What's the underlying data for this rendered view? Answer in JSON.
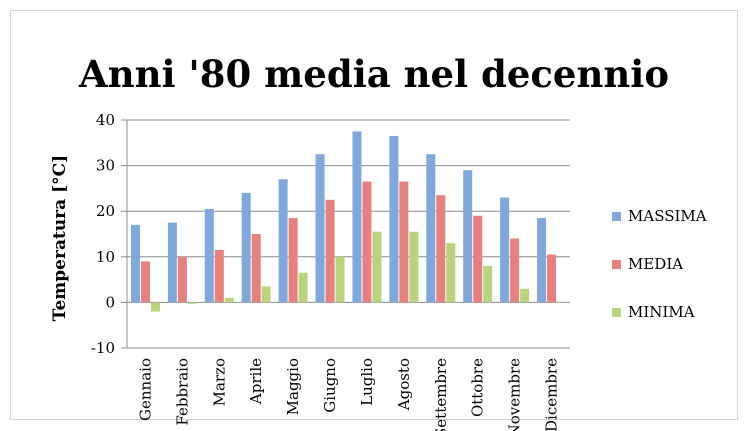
{
  "chart_data": {
    "type": "bar",
    "title": "Anni '80 media nel decennio",
    "xlabel": "",
    "ylabel": "Temperatura [°C]",
    "ylim": [
      -10,
      40
    ],
    "yticks": [
      40,
      30,
      20,
      10,
      0,
      -10
    ],
    "grid": true,
    "legend_position": "right",
    "categories": [
      "Gennaio",
      "Febbraio",
      "Marzo",
      "Aprile",
      "Maggio",
      "Giugno",
      "Luglio",
      "Agosto",
      "Settembre",
      "Ottobre",
      "Novembre",
      "Dicembre"
    ],
    "series": [
      {
        "name": "MASSIMA",
        "color": "#7fa8dc",
        "values": [
          17,
          17.5,
          20.5,
          24,
          27,
          32.5,
          37.5,
          36.5,
          32.5,
          29,
          23,
          18.5
        ]
      },
      {
        "name": "MEDIA",
        "color": "#e8807e",
        "values": [
          9,
          10,
          11.5,
          15,
          18.5,
          22.5,
          26.5,
          26.5,
          23.5,
          19,
          14,
          10.5
        ]
      },
      {
        "name": "MINIMA",
        "color": "#b9d47c",
        "values": [
          -2,
          -0.3,
          1,
          3.5,
          6.5,
          10,
          15.5,
          15.5,
          13,
          8,
          3,
          0
        ]
      }
    ]
  }
}
